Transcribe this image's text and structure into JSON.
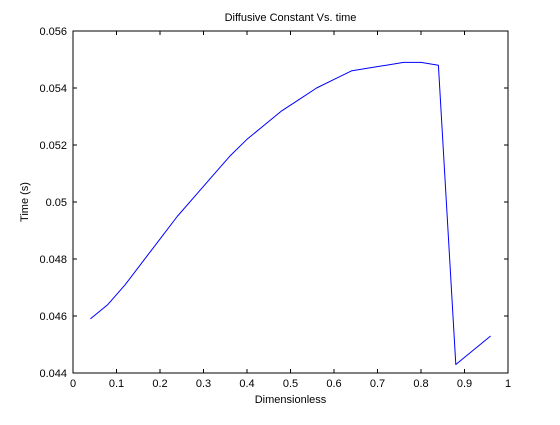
{
  "chart_data": {
    "type": "line",
    "title": "Diffusive Constant Vs. time",
    "xlabel": "Dimensionless",
    "ylabel": "Time (s)",
    "xlim": [
      0,
      1
    ],
    "ylim": [
      0.044,
      0.056
    ],
    "x_ticks": [
      0,
      0.1,
      0.2,
      0.3,
      0.4,
      0.5,
      0.6,
      0.7,
      0.8,
      0.9,
      1
    ],
    "x_tick_labels": [
      "0",
      "0.1",
      "0.2",
      "0.3",
      "0.4",
      "0.5",
      "0.6",
      "0.7",
      "0.8",
      "0.9",
      "1"
    ],
    "y_ticks": [
      0.044,
      0.046,
      0.048,
      0.05,
      0.052,
      0.054,
      0.056
    ],
    "y_tick_labels": [
      "0.044",
      "0.046",
      "0.048",
      "0.05",
      "0.052",
      "0.054",
      "0.056"
    ],
    "grid": false,
    "legend": "none",
    "series": [
      {
        "color": "#0000ff",
        "x": [
          0.04,
          0.08,
          0.12,
          0.16,
          0.2,
          0.24,
          0.28,
          0.32,
          0.36,
          0.4,
          0.44,
          0.48,
          0.52,
          0.56,
          0.6,
          0.64,
          0.68,
          0.72,
          0.76,
          0.8,
          0.84,
          0.88,
          0.92,
          0.96
        ],
        "y": [
          0.0459,
          0.0464,
          0.0471,
          0.0479,
          0.0487,
          0.0495,
          0.0502,
          0.0509,
          0.0516,
          0.0522,
          0.0527,
          0.0532,
          0.0536,
          0.054,
          0.0543,
          0.0546,
          0.0547,
          0.0548,
          0.0549,
          0.0549,
          0.0548,
          0.0443,
          0.0448,
          0.0453
        ]
      }
    ]
  }
}
